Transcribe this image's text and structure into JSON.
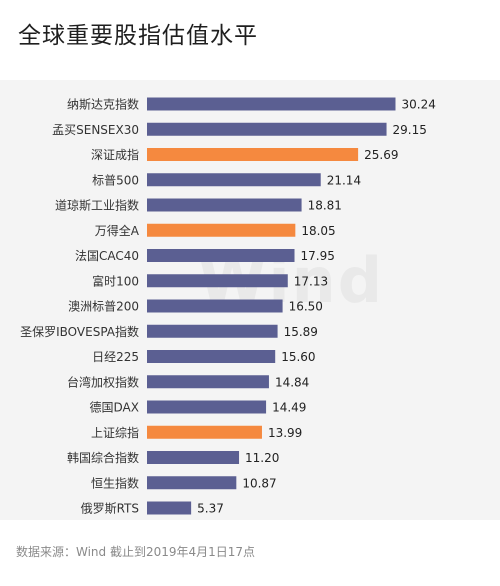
{
  "header": {
    "title": "全球重要股指估值水平"
  },
  "watermark": "Wind",
  "footer": {
    "source": "数据来源：Wind  截止到2019年4月1日17点"
  },
  "colors": {
    "default_bar": "#5b5f92",
    "highlight_bar": "#f5893f",
    "label_text": "#333333",
    "value_text": "#222222",
    "panel_bg": "#f4f4f4"
  },
  "chart_data": {
    "type": "bar",
    "orientation": "horizontal",
    "title": "全球重要股指估值水平",
    "xlabel": "",
    "ylabel": "",
    "xlim": [
      0,
      32
    ],
    "grid": false,
    "categories": [
      "纳斯达克指数",
      "孟买SENSEX30",
      "深证成指",
      "标普500",
      "道琼斯工业指数",
      "万得全A",
      "法国CAC40",
      "富时100",
      "澳洲标普200",
      "圣保罗IBOVESPA指数",
      "日经225",
      "台湾加权指数",
      "德国DAX",
      "上证综指",
      "韩国综合指数",
      "恒生指数",
      "俄罗斯RTS"
    ],
    "values": [
      30.24,
      29.15,
      25.69,
      21.14,
      18.81,
      18.05,
      17.95,
      17.13,
      16.5,
      15.89,
      15.6,
      14.84,
      14.49,
      13.99,
      11.2,
      10.87,
      5.37
    ],
    "value_labels": [
      "30.24",
      "29.15",
      "25.69",
      "21.14",
      "18.81",
      "18.05",
      "17.95",
      "17.13",
      "16.50",
      "15.89",
      "15.60",
      "14.84",
      "14.49",
      "13.99",
      "11.20",
      "10.87",
      "5.37"
    ],
    "highlighted": [
      "深证成指",
      "万得全A",
      "上证综指"
    ]
  }
}
